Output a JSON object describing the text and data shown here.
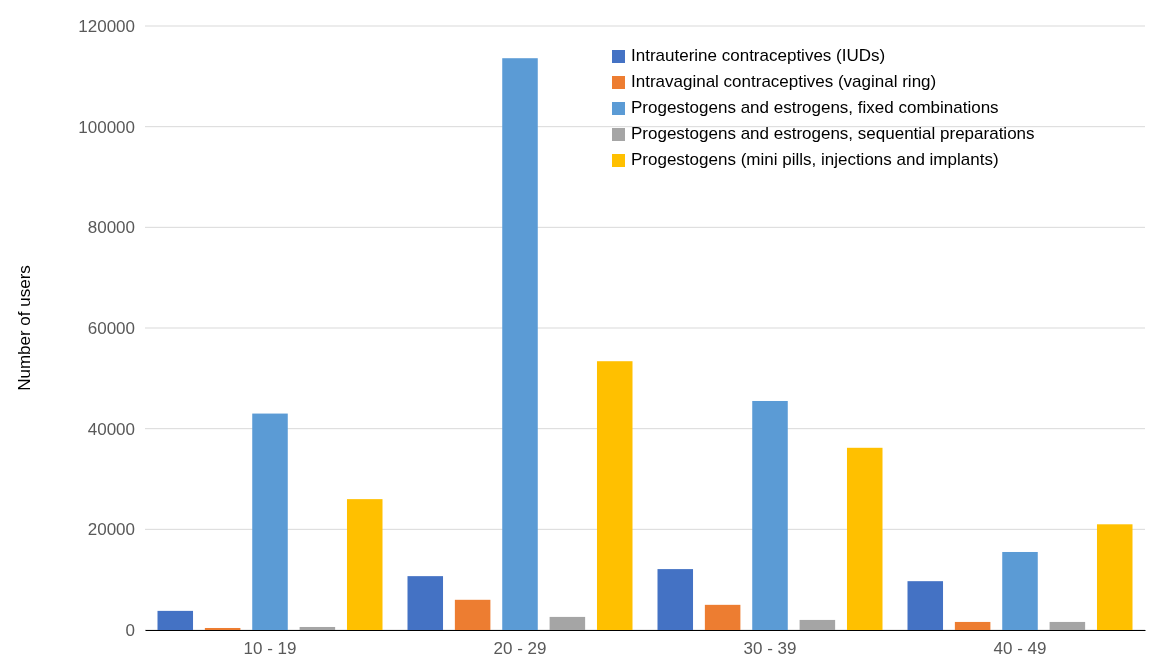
{
  "chart_data": {
    "type": "bar",
    "ylabel": "Number of users",
    "categories": [
      "10 - 19",
      "20 - 29",
      "30 - 39",
      "40 - 49"
    ],
    "series": [
      {
        "name": "Intrauterine contraceptives (IUDs)",
        "color": "#4472c4",
        "values": [
          3800,
          10700,
          12100,
          9700
        ]
      },
      {
        "name": "Intravaginal contraceptives (vaginal ring)",
        "color": "#ed7d31",
        "values": [
          400,
          6000,
          5000,
          1600
        ]
      },
      {
        "name": "Progestogens and estrogens, fixed combinations",
        "color": "#5b9bd5",
        "values": [
          43000,
          113600,
          45500,
          15500
        ]
      },
      {
        "name": "Progestogens and estrogens, sequential preparations",
        "color": "#a5a5a5",
        "values": [
          600,
          2600,
          2000,
          1600
        ]
      },
      {
        "name": "Progestogens (mini pills, injections and implants)",
        "color": "#ffc000",
        "values": [
          26000,
          53400,
          36200,
          21000
        ]
      }
    ],
    "ylim": [
      0,
      120000
    ],
    "yticks": [
      0,
      20000,
      40000,
      60000,
      80000,
      100000,
      120000
    ],
    "grid": "y",
    "legend": "top right"
  }
}
